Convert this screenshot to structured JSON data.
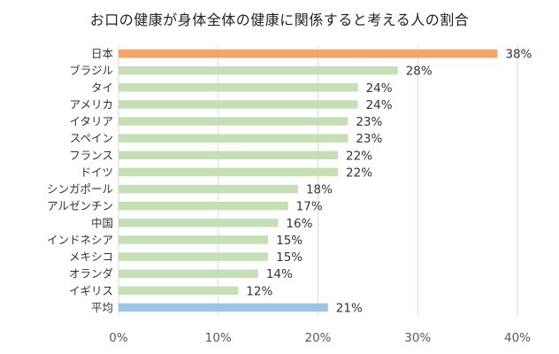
{
  "chart_data": {
    "type": "bar",
    "orientation": "horizontal",
    "title": "お口の健康が身体全体の健康に関係すると考える人の割合",
    "categories": [
      "日本",
      "ブラジル",
      "タイ",
      "アメリカ",
      "イタリア",
      "スペイン",
      "フランス",
      "ドイツ",
      "シンガポール",
      "アルゼンチン",
      "中国",
      "インドネシア",
      "メキシコ",
      "オランダ",
      "イギリス",
      "平均"
    ],
    "values": [
      38,
      28,
      24,
      24,
      23,
      23,
      22,
      22,
      18,
      17,
      16,
      15,
      15,
      14,
      12,
      21
    ],
    "value_labels": [
      "38%",
      "28%",
      "24%",
      "24%",
      "23%",
      "23%",
      "22%",
      "22%",
      "18%",
      "17%",
      "16%",
      "15%",
      "15%",
      "14%",
      "12%",
      "21%"
    ],
    "xlim": [
      0,
      40
    ],
    "x_ticks": [
      0,
      10,
      20,
      30,
      40
    ],
    "x_tick_labels": [
      "0%",
      "10%",
      "20%",
      "30%",
      "40%"
    ],
    "grid": true,
    "legend": "none",
    "colors": {
      "highlight": "#F4A46A",
      "default": "#C5E0B4",
      "average": "#9DC3E6",
      "grid": "#D9D9D9"
    },
    "bar_color_roles": [
      "highlight",
      "default",
      "default",
      "default",
      "default",
      "default",
      "default",
      "default",
      "default",
      "default",
      "default",
      "default",
      "default",
      "default",
      "default",
      "average"
    ]
  }
}
